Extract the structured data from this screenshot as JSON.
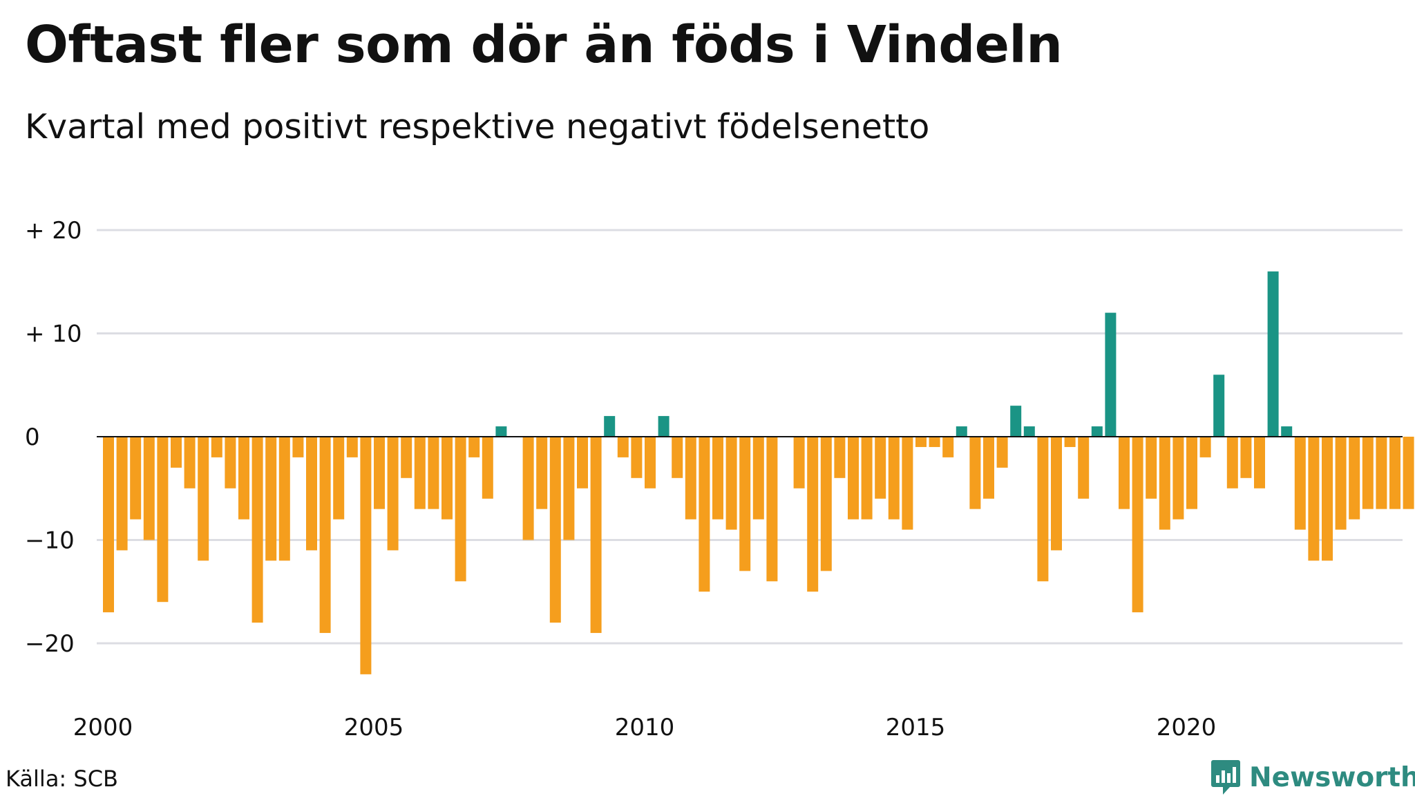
{
  "header": {
    "title": "Oftast fler som dör än föds i Vindeln",
    "subtitle": "Kvartal med positivt respektive negativt födelsenetto"
  },
  "footer": {
    "source": "Källa: SCB",
    "brand": "Newsworthy",
    "brand_icon": "bar-chart-speech-bubble-icon"
  },
  "colors": {
    "positive": "#1a9485",
    "negative": "#f59e1d",
    "grid": "#dcdde3",
    "zero": "#111111",
    "brand": "#2e8b80"
  },
  "chart_data": {
    "type": "bar",
    "x_ticks": [
      "2000",
      "2005",
      "2010",
      "2015",
      "2020"
    ],
    "y_ticks": [
      {
        "value": 20,
        "label": "+ 20"
      },
      {
        "value": 10,
        "label": "+ 10"
      },
      {
        "value": 0,
        "label": "0"
      },
      {
        "value": -10,
        "label": "−10"
      },
      {
        "value": -20,
        "label": "−20"
      }
    ],
    "ylim": [
      -25,
      22
    ],
    "grid": true,
    "first_period": "2000 Q1",
    "last_period": "2024 Q1",
    "values": [
      -17,
      -11,
      -8,
      -10,
      -16,
      -3,
      -5,
      -12,
      -2,
      -5,
      -8,
      -18,
      -12,
      -12,
      -2,
      -11,
      -19,
      -8,
      -2,
      -23,
      -7,
      -11,
      -4,
      -7,
      -7,
      -8,
      -14,
      -2,
      -6,
      1,
      0,
      -10,
      -7,
      -18,
      -10,
      -5,
      -19,
      2,
      -2,
      -4,
      -5,
      2,
      -4,
      -8,
      -15,
      -8,
      -9,
      -13,
      -8,
      -14,
      0,
      -5,
      -15,
      -13,
      -4,
      -8,
      -8,
      -6,
      -8,
      -9,
      -1,
      -1,
      -2,
      1,
      -7,
      -6,
      -3,
      3,
      1,
      -14,
      -11,
      -1,
      -6,
      1,
      12,
      -7,
      -17,
      -6,
      -9,
      -8,
      -7,
      -2,
      6,
      -5,
      -4,
      -5,
      16,
      1,
      -9,
      -12,
      -12,
      -9,
      -8,
      -7,
      -7,
      -7,
      -7
    ]
  }
}
